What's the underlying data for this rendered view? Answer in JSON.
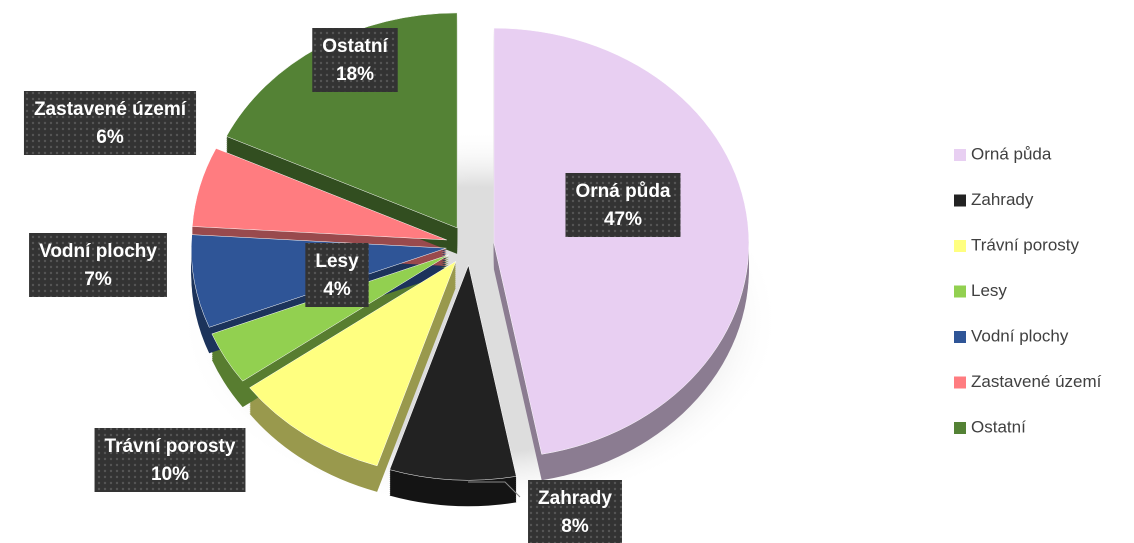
{
  "chart_data": {
    "type": "pie",
    "categories": [
      "Orná půda",
      "Zahrady",
      "Trávní porosty",
      "Lesy",
      "Vodní plochy",
      "Zastavené území",
      "Ostatní"
    ],
    "values": [
      47,
      8,
      10,
      4,
      7,
      6,
      18
    ],
    "value_labels": [
      "47%",
      "8%",
      "10%",
      "4%",
      "7%",
      "6%",
      "18%"
    ],
    "colors": [
      "#e8cff2",
      "#222222",
      "#ffff80",
      "#92d050",
      "#2f5597",
      "#ff7c80",
      "#548235"
    ],
    "legend": "right"
  }
}
